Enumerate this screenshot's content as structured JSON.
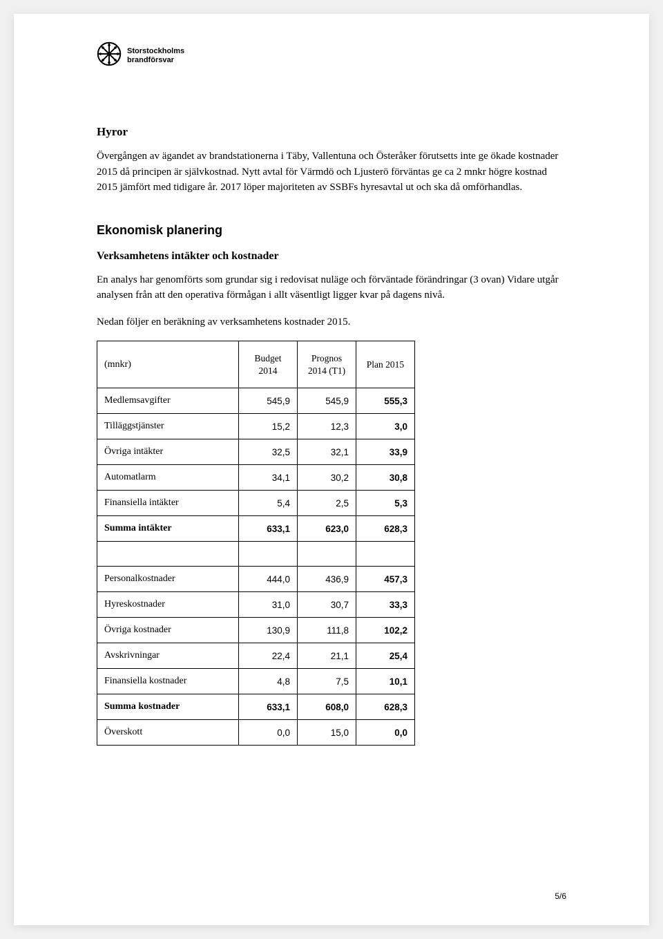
{
  "logo": {
    "line1": "Storstockholms",
    "line2": "brandförsvar"
  },
  "sections": {
    "hyror": {
      "title": "Hyror",
      "paragraph": "Övergången av ägandet av brandstationerna i Täby, Vallentuna och Österåker förutsetts inte ge ökade kostnader 2015 då principen är självkostnad. Nytt avtal för Värmdö och Ljusterö förväntas ge ca 2 mnkr högre kostnad 2015 jämfört med tidigare år. 2017 löper majoriteten av SSBFs hyresavtal ut och ska då omförhandlas."
    },
    "ekonomisk": {
      "title": "Ekonomisk planering",
      "subheading": "Verksamhetens intäkter och kostnader",
      "para1": "En analys har genomförts som grundar sig i redovisat nuläge och förväntade förändringar (3 ovan) Vidare utgår analysen från att den operativa förmågan i allt väsentligt ligger kvar på dagens nivå.",
      "para2": "Nedan följer en beräkning av verksamhetens kostnader 2015."
    }
  },
  "table": {
    "unit_label": "(mnkr)",
    "headers": {
      "budget": "Budget 2014",
      "prognos": "Prognos 2014 (T1)",
      "plan": "Plan 2015"
    },
    "rows": [
      {
        "type": "data",
        "label": "Medlemsavgifter",
        "budget": "545,9",
        "prognos": "545,9",
        "plan": "555,3"
      },
      {
        "type": "data",
        "label": "Tilläggstjänster",
        "budget": "15,2",
        "prognos": "12,3",
        "plan": "3,0"
      },
      {
        "type": "data",
        "label": "Övriga intäkter",
        "budget": "32,5",
        "prognos": "32,1",
        "plan": "33,9"
      },
      {
        "type": "data",
        "label": "Automatlarm",
        "budget": "34,1",
        "prognos": "30,2",
        "plan": "30,8"
      },
      {
        "type": "data",
        "label": "Finansiella intäkter",
        "budget": "5,4",
        "prognos": "2,5",
        "plan": "5,3"
      },
      {
        "type": "bold",
        "label": "Summa intäkter",
        "budget": "633,1",
        "prognos": "623,0",
        "plan": "628,3"
      },
      {
        "type": "empty"
      },
      {
        "type": "data",
        "label": "Personalkostnader",
        "budget": "444,0",
        "prognos": "436,9",
        "plan": "457,3"
      },
      {
        "type": "data",
        "label": "Hyreskostnader",
        "budget": "31,0",
        "prognos": "30,7",
        "plan": "33,3"
      },
      {
        "type": "data",
        "label": "Övriga kostnader",
        "budget": "130,9",
        "prognos": "111,8",
        "plan": "102,2"
      },
      {
        "type": "data",
        "label": "Avskrivningar",
        "budget": "22,4",
        "prognos": "21,1",
        "plan": "25,4"
      },
      {
        "type": "data",
        "label": "Finansiella kostnader",
        "budget": "4,8",
        "prognos": "7,5",
        "plan": "10,1"
      },
      {
        "type": "bold",
        "label": "Summa kostnader",
        "budget": "633,1",
        "prognos": "608,0",
        "plan": "628,3"
      },
      {
        "type": "data",
        "label": "Överskott",
        "budget": "0,0",
        "prognos": "15,0",
        "plan": "0,0"
      }
    ]
  },
  "page_number": "5/6"
}
